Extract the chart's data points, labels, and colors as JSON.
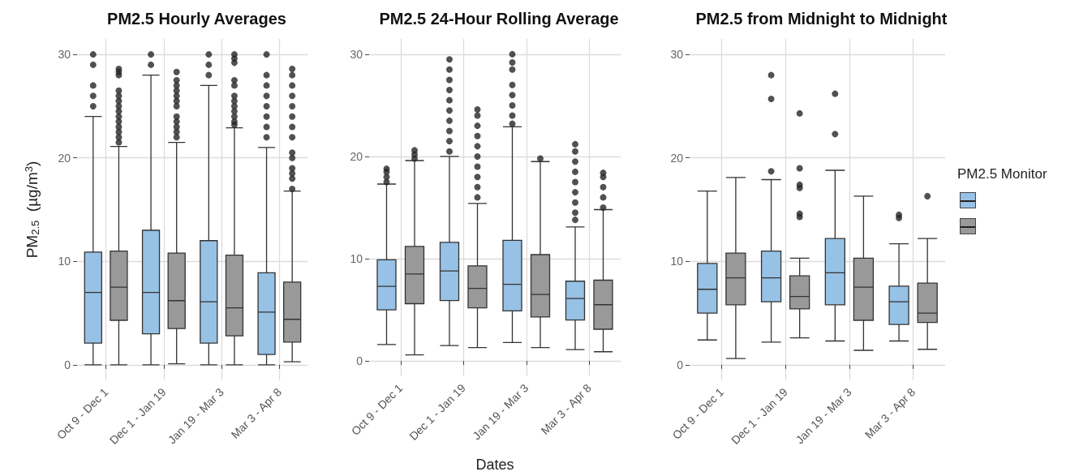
{
  "chart_data": [
    {
      "type": "box",
      "title": "PM2.5 Hourly Averages",
      "ylabel": "PM$_{2.5}$  (µg/m$^{3}$)",
      "categories": [
        "Oct 9 - Dec 1",
        "Dec 1 - Jan 19",
        "Jan 19 - Mar 3",
        "Mar 3 - Apr 8"
      ],
      "ylim": [
        -1.5,
        31.5
      ],
      "yticks": [
        0,
        10,
        20,
        30
      ],
      "grid": true,
      "series": [
        {
          "color": "#97c1e5",
          "boxes": [
            {
              "low": 0,
              "q1": 2.1,
              "median": 7.0,
              "q3": 10.9,
              "high": 24.0,
              "outliers": [
                25.0,
                26.0,
                27.0,
                29.0,
                30.0
              ]
            },
            {
              "low": 0,
              "q1": 3.0,
              "median": 7.0,
              "q3": 13.0,
              "high": 28.0,
              "outliers": [
                29.0,
                30.0
              ]
            },
            {
              "low": 0,
              "q1": 2.1,
              "median": 6.1,
              "q3": 12.0,
              "high": 27.0,
              "outliers": [
                28.0,
                29.0,
                30.0
              ]
            },
            {
              "low": 0,
              "q1": 1.0,
              "median": 5.1,
              "q3": 8.9,
              "high": 21.0,
              "outliers": [
                22.0,
                23.0,
                24.0,
                25.0,
                26.0,
                27.0,
                28.0,
                30.0
              ]
            }
          ]
        },
        {
          "color": "#999999",
          "boxes": [
            {
              "low": 0,
              "q1": 4.3,
              "median": 7.5,
              "q3": 11.0,
              "high": 21.1,
              "outliers": [
                21.5,
                22.0,
                22.5,
                23.0,
                23.5,
                24.0,
                24.5,
                25.0,
                25.5,
                26.0,
                26.5,
                28.0,
                28.3,
                28.6
              ]
            },
            {
              "low": 0.1,
              "q1": 3.5,
              "median": 6.2,
              "q3": 10.8,
              "high": 21.5,
              "outliers": [
                22.0,
                22.5,
                23.0,
                23.5,
                24.0,
                25.0,
                25.5,
                26.0,
                26.5,
                27.0,
                27.5,
                28.3
              ]
            },
            {
              "low": 0,
              "q1": 2.8,
              "median": 5.5,
              "q3": 10.6,
              "high": 22.9,
              "outliers": [
                23.2,
                23.5,
                24.0,
                24.5,
                25.0,
                25.5,
                26.0,
                27.0,
                27.5,
                29.2,
                29.6,
                30.0
              ]
            },
            {
              "low": 0.3,
              "q1": 2.2,
              "median": 4.4,
              "q3": 8.0,
              "high": 16.8,
              "outliers": [
                17.0,
                18.0,
                18.5,
                19.0,
                20.0,
                20.5,
                22.0,
                23.0,
                24.0,
                25.0,
                26.0,
                27.0,
                28.0,
                28.6
              ]
            }
          ]
        }
      ]
    },
    {
      "type": "box",
      "title": "PM2.5 24-Hour Rolling Average",
      "xlabel": "Dates",
      "categories": [
        "Oct 9 - Dec 1",
        "Dec 1 - Jan 19",
        "Jan 19 - Mar 3",
        "Mar 3 - Apr 8"
      ],
      "ylim": [
        -1.5,
        31.5
      ],
      "yticks": [
        0,
        10,
        20,
        30
      ],
      "grid": true,
      "series": [
        {
          "color": "#97c1e5",
          "boxes": [
            {
              "low": 1.6,
              "q1": 5.0,
              "median": 7.3,
              "q3": 9.9,
              "high": 17.3,
              "outliers": [
                17.5,
                18.0,
                18.5,
                18.8
              ]
            },
            {
              "low": 1.5,
              "q1": 5.9,
              "median": 8.8,
              "q3": 11.6,
              "high": 20.0,
              "outliers": [
                20.5,
                21.5,
                22.5,
                23.5,
                24.5,
                25.5,
                26.5,
                27.5,
                28.5,
                29.5
              ]
            },
            {
              "low": 1.8,
              "q1": 4.9,
              "median": 7.5,
              "q3": 11.8,
              "high": 22.9,
              "outliers": [
                23.2,
                24.0,
                25.0,
                26.0,
                27.0,
                28.5,
                29.2,
                30.0
              ]
            },
            {
              "low": 1.1,
              "q1": 4.0,
              "median": 6.1,
              "q3": 7.8,
              "high": 13.1,
              "outliers": [
                13.8,
                14.5,
                15.5,
                16.5,
                17.5,
                18.5,
                19.5,
                20.5,
                21.2
              ]
            }
          ]
        },
        {
          "color": "#999999",
          "boxes": [
            {
              "low": 0.6,
              "q1": 5.6,
              "median": 8.5,
              "q3": 11.2,
              "high": 19.6,
              "outliers": [
                19.8,
                20.2,
                20.6
              ]
            },
            {
              "low": 1.3,
              "q1": 5.2,
              "median": 7.1,
              "q3": 9.3,
              "high": 15.4,
              "outliers": [
                16.0,
                17.0,
                18.0,
                19.0,
                20.0,
                21.0,
                22.0,
                23.0,
                24.0,
                24.6
              ]
            },
            {
              "low": 1.3,
              "q1": 4.3,
              "median": 6.5,
              "q3": 10.4,
              "high": 19.5,
              "outliers": [
                19.8
              ]
            },
            {
              "low": 0.9,
              "q1": 3.1,
              "median": 5.5,
              "q3": 7.9,
              "high": 14.8,
              "outliers": [
                15.0,
                16.0,
                17.0,
                18.0,
                18.4
              ]
            }
          ]
        }
      ]
    },
    {
      "type": "box",
      "title": "PM2.5 from Midnight to Midnight",
      "legend_title": "PM2.5 Monitor",
      "categories": [
        "Oct 9 - Dec 1",
        "Dec 1 - Jan 19",
        "Jan 19 - Mar 3",
        "Mar 3 - Apr 8"
      ],
      "ylim": [
        -1.5,
        31.5
      ],
      "yticks": [
        0,
        10,
        20,
        30
      ],
      "grid": true,
      "series": [
        {
          "color": "#97c1e5",
          "boxes": [
            {
              "low": 2.4,
              "q1": 5.0,
              "median": 7.3,
              "q3": 9.8,
              "high": 16.8
            },
            {
              "low": 2.2,
              "q1": 6.1,
              "median": 8.4,
              "q3": 11.0,
              "high": 17.9,
              "outliers": [
                18.7,
                25.7,
                28.0
              ]
            },
            {
              "low": 2.3,
              "q1": 5.8,
              "median": 8.9,
              "q3": 12.2,
              "high": 18.8,
              "outliers": [
                22.3,
                26.2
              ]
            },
            {
              "low": 2.3,
              "q1": 3.9,
              "median": 6.1,
              "q3": 7.6,
              "high": 11.7,
              "outliers": [
                14.2,
                14.5
              ]
            }
          ]
        },
        {
          "color": "#999999",
          "boxes": [
            {
              "low": 0.6,
              "q1": 5.8,
              "median": 8.4,
              "q3": 10.8,
              "high": 18.1
            },
            {
              "low": 2.6,
              "q1": 5.4,
              "median": 6.6,
              "q3": 8.6,
              "high": 10.3,
              "outliers": [
                14.3,
                14.6,
                17.1,
                17.4,
                19.0,
                24.3
              ]
            },
            {
              "low": 1.4,
              "q1": 4.3,
              "median": 7.5,
              "q3": 10.3,
              "high": 16.3
            },
            {
              "low": 1.5,
              "q1": 4.1,
              "median": 5.0,
              "q3": 7.9,
              "high": 12.2,
              "outliers": [
                16.3
              ]
            }
          ]
        }
      ]
    }
  ]
}
